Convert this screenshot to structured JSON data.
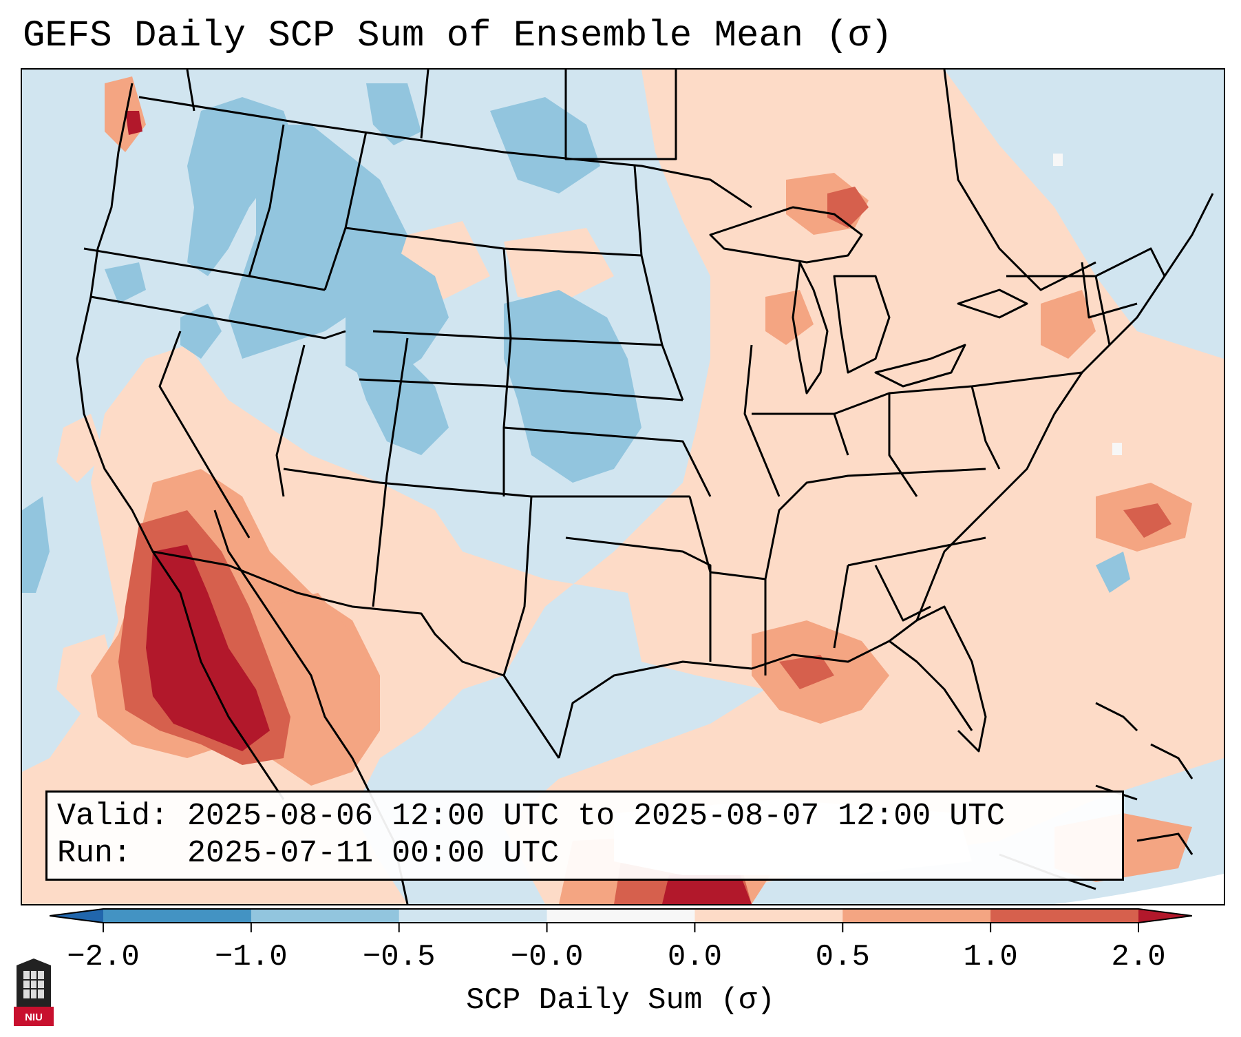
{
  "title": "GEFS Daily SCP Sum of Ensemble Mean (σ)",
  "info": {
    "valid_label": "Valid:",
    "valid_value": "2025-08-06 12:00 UTC to 2025-08-07 12:00 UTC",
    "run_label": "Run:",
    "run_value": "2025-07-11 00:00 UTC"
  },
  "colorbar": {
    "label": "SCP Daily Sum (σ)",
    "ticks": [
      "−2.0",
      "−1.0",
      "−0.5",
      "−0.0",
      "0.0",
      "0.5",
      "1.0",
      "2.0"
    ],
    "colors": [
      "#4393c3",
      "#92c5de",
      "#d1e5f0",
      "#f7f7f7",
      "#fddbc7",
      "#f4a582",
      "#d6604d"
    ],
    "under_color": "#2166ac",
    "over_color": "#b2182b"
  },
  "logo": {
    "text": "NIU"
  },
  "colors": {
    "frame": "#000000",
    "background_neutral": "#d1e5f0"
  }
}
